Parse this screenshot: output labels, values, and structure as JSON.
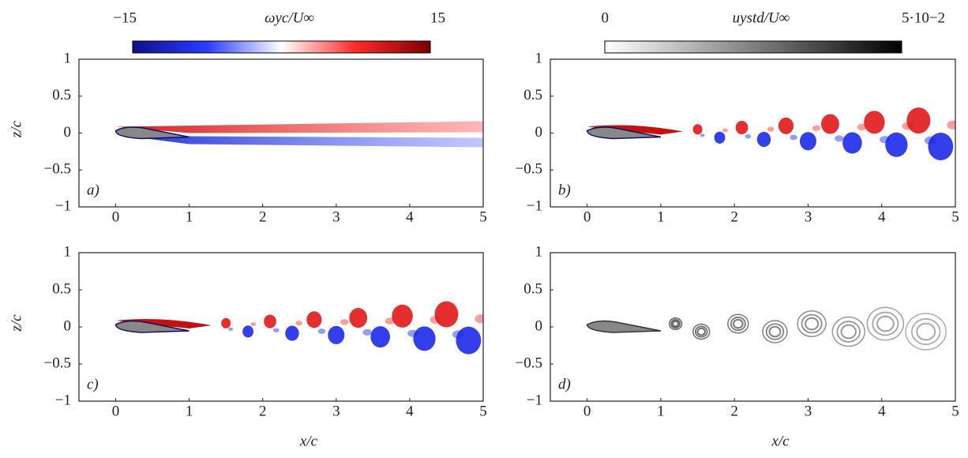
{
  "colorbars": [
    {
      "label": "ωyc/U∞",
      "lim": [
        -15,
        15
      ],
      "ticks": [
        {
          "value": -15,
          "label": "−15"
        },
        15
      ],
      "colors": [
        "#10108c",
        "#2a3cff",
        "#ffffff",
        "#ff2a2a",
        "#7a0000"
      ]
    },
    {
      "label": "uystd/U∞",
      "lim": [
        0,
        0.05
      ],
      "ticks": [
        0,
        {
          "value": 0.05,
          "label": "5·10−2"
        }
      ],
      "colors": [
        "#ffffff",
        "#000000"
      ]
    }
  ],
  "chart_data": [
    {
      "type": "field",
      "panel_label": "a)",
      "ylabel": "z/c",
      "xlim": [
        -0.5,
        5
      ],
      "ylim": [
        -1,
        1
      ],
      "xticks": [
        0,
        1,
        2,
        3,
        4,
        5
      ],
      "yticks": [
        {
          "value": -1,
          "label": "−1"
        },
        {
          "value": -0.5,
          "label": "−0.5"
        },
        0,
        0.5,
        1
      ]
    },
    {
      "type": "field",
      "panel_label": "b)",
      "xlim": [
        -0.5,
        5
      ],
      "ylim": [
        -1,
        1
      ],
      "xticks": [
        0,
        1,
        2,
        3,
        4,
        5
      ],
      "yticks": [
        {
          "value": -1,
          "label": "−1"
        },
        {
          "value": -0.5,
          "label": "−0.5"
        },
        0,
        0.5,
        1
      ]
    },
    {
      "type": "field",
      "panel_label": "c)",
      "ylabel": "z/c",
      "xlabel": "x/c",
      "xlim": [
        -0.5,
        5
      ],
      "ylim": [
        -1,
        1
      ],
      "xticks": [
        0,
        1,
        2,
        3,
        4,
        5
      ],
      "yticks": [
        {
          "value": -1,
          "label": "−1"
        },
        {
          "value": -0.5,
          "label": "−0.5"
        },
        0,
        0.5,
        1
      ]
    },
    {
      "type": "field",
      "panel_label": "d)",
      "xlabel": "x/c",
      "xlim": [
        -0.5,
        5
      ],
      "ylim": [
        -1,
        1
      ],
      "xticks": [
        0,
        1,
        2,
        3,
        4,
        5
      ],
      "yticks": [
        {
          "value": -1,
          "label": "−1"
        },
        {
          "value": -0.5,
          "label": "−0.5"
        },
        0,
        0.5,
        1
      ]
    }
  ]
}
